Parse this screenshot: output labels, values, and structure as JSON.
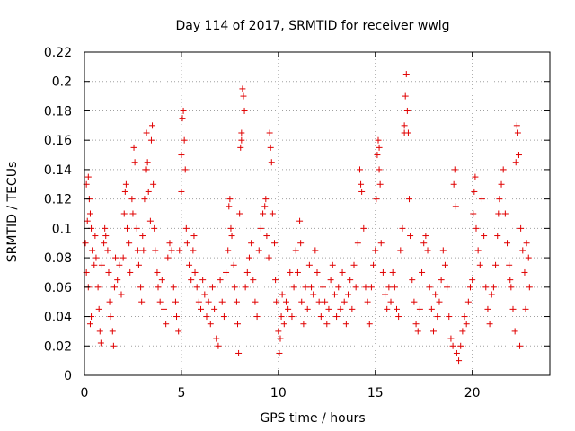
{
  "chart_data": {
    "type": "scatter",
    "title": "Day 114 of 2017, SRMTID for receiver wwlg",
    "xlabel": "GPS time / hours",
    "ylabel": "SRMTID / TECUs",
    "xlim": [
      0,
      24
    ],
    "ylim": [
      0,
      0.22
    ],
    "xticks": [
      0,
      5,
      10,
      15,
      20
    ],
    "xtick_labels": [
      "0",
      "5",
      "10",
      "15",
      "20"
    ],
    "yticks": [
      0,
      0.02,
      0.04,
      0.06,
      0.08,
      0.1,
      0.12,
      0.14,
      0.16,
      0.18,
      0.2,
      0.22
    ],
    "ytick_labels": [
      "0",
      "0.02",
      "0.04",
      "0.06",
      "0.08",
      "0.1",
      "0.12",
      "0.14",
      "0.16",
      "0.18",
      "0.2",
      "0.22"
    ],
    "grid": true,
    "marker": "+",
    "color": "#e00000",
    "series": [
      {
        "name": "SRMTID",
        "points": [
          [
            0.05,
            0.09
          ],
          [
            0.1,
            0.13
          ],
          [
            0.15,
            0.105
          ],
          [
            0.2,
            0.135
          ],
          [
            0.25,
            0.12
          ],
          [
            0.3,
            0.11
          ],
          [
            0.35,
            0.1
          ],
          [
            0.4,
            0.085
          ],
          [
            0.1,
            0.07
          ],
          [
            0.2,
            0.06
          ],
          [
            0.3,
            0.035
          ],
          [
            0.35,
            0.04
          ],
          [
            0.5,
            0.075
          ],
          [
            0.55,
            0.095
          ],
          [
            0.6,
            0.08
          ],
          [
            0.7,
            0.06
          ],
          [
            0.75,
            0.045
          ],
          [
            0.8,
            0.03
          ],
          [
            0.85,
            0.022
          ],
          [
            0.9,
            0.075
          ],
          [
            1.0,
            0.09
          ],
          [
            1.05,
            0.1
          ],
          [
            1.1,
            0.095
          ],
          [
            1.2,
            0.085
          ],
          [
            1.25,
            0.07
          ],
          [
            1.3,
            0.05
          ],
          [
            1.35,
            0.04
          ],
          [
            1.45,
            0.03
          ],
          [
            1.5,
            0.02
          ],
          [
            1.55,
            0.06
          ],
          [
            1.6,
            0.08
          ],
          [
            1.7,
            0.065
          ],
          [
            1.8,
            0.075
          ],
          [
            1.9,
            0.055
          ],
          [
            2.0,
            0.08
          ],
          [
            2.05,
            0.11
          ],
          [
            2.1,
            0.125
          ],
          [
            2.15,
            0.13
          ],
          [
            2.2,
            0.1
          ],
          [
            2.3,
            0.09
          ],
          [
            2.35,
            0.07
          ],
          [
            2.45,
            0.12
          ],
          [
            2.5,
            0.11
          ],
          [
            2.55,
            0.155
          ],
          [
            2.6,
            0.145
          ],
          [
            2.7,
            0.1
          ],
          [
            2.75,
            0.085
          ],
          [
            2.8,
            0.075
          ],
          [
            2.9,
            0.06
          ],
          [
            2.95,
            0.05
          ],
          [
            3.0,
            0.095
          ],
          [
            3.05,
            0.085
          ],
          [
            3.1,
            0.12
          ],
          [
            3.15,
            0.14
          ],
          [
            3.2,
            0.165
          ],
          [
            3.25,
            0.145
          ],
          [
            3.3,
            0.125
          ],
          [
            3.4,
            0.105
          ],
          [
            3.45,
            0.16
          ],
          [
            3.5,
            0.17
          ],
          [
            3.55,
            0.13
          ],
          [
            3.6,
            0.1
          ],
          [
            3.65,
            0.085
          ],
          [
            3.75,
            0.07
          ],
          [
            3.8,
            0.06
          ],
          [
            3.9,
            0.05
          ],
          [
            4.0,
            0.065
          ],
          [
            4.1,
            0.045
          ],
          [
            4.2,
            0.035
          ],
          [
            4.3,
            0.08
          ],
          [
            4.4,
            0.09
          ],
          [
            4.5,
            0.085
          ],
          [
            4.6,
            0.06
          ],
          [
            4.7,
            0.05
          ],
          [
            4.75,
            0.04
          ],
          [
            4.85,
            0.03
          ],
          [
            4.9,
            0.085
          ],
          [
            5.0,
            0.125
          ],
          [
            5.05,
            0.175
          ],
          [
            5.1,
            0.18
          ],
          [
            5.15,
            0.16
          ],
          [
            5.2,
            0.14
          ],
          [
            5.25,
            0.1
          ],
          [
            5.3,
            0.09
          ],
          [
            5.4,
            0.075
          ],
          [
            5.5,
            0.065
          ],
          [
            5.6,
            0.085
          ],
          [
            5.65,
            0.095
          ],
          [
            5.7,
            0.07
          ],
          [
            5.8,
            0.06
          ],
          [
            5.9,
            0.05
          ],
          [
            6.0,
            0.045
          ],
          [
            6.1,
            0.065
          ],
          [
            6.2,
            0.055
          ],
          [
            6.3,
            0.04
          ],
          [
            6.4,
            0.05
          ],
          [
            6.5,
            0.035
          ],
          [
            6.6,
            0.06
          ],
          [
            6.7,
            0.045
          ],
          [
            6.8,
            0.025
          ],
          [
            6.9,
            0.02
          ],
          [
            7.0,
            0.065
          ],
          [
            7.1,
            0.05
          ],
          [
            7.2,
            0.04
          ],
          [
            7.3,
            0.07
          ],
          [
            7.4,
            0.085
          ],
          [
            7.45,
            0.115
          ],
          [
            7.5,
            0.12
          ],
          [
            7.55,
            0.1
          ],
          [
            7.6,
            0.095
          ],
          [
            7.7,
            0.075
          ],
          [
            7.75,
            0.06
          ],
          [
            7.85,
            0.05
          ],
          [
            7.9,
            0.035
          ],
          [
            7.95,
            0.015
          ],
          [
            8.0,
            0.11
          ],
          [
            8.05,
            0.155
          ],
          [
            8.1,
            0.165
          ],
          [
            8.15,
            0.195
          ],
          [
            8.2,
            0.19
          ],
          [
            8.25,
            0.18
          ],
          [
            8.3,
            0.06
          ],
          [
            8.4,
            0.07
          ],
          [
            8.5,
            0.08
          ],
          [
            8.6,
            0.09
          ],
          [
            8.7,
            0.065
          ],
          [
            8.8,
            0.05
          ],
          [
            8.9,
            0.04
          ],
          [
            9.0,
            0.085
          ],
          [
            9.1,
            0.1
          ],
          [
            9.2,
            0.11
          ],
          [
            9.3,
            0.115
          ],
          [
            9.35,
            0.12
          ],
          [
            9.4,
            0.095
          ],
          [
            9.5,
            0.08
          ],
          [
            9.55,
            0.165
          ],
          [
            9.6,
            0.155
          ],
          [
            9.65,
            0.145
          ],
          [
            9.7,
            0.11
          ],
          [
            9.8,
            0.09
          ],
          [
            9.85,
            0.065
          ],
          [
            9.9,
            0.05
          ],
          [
            10.0,
            0.03
          ],
          [
            10.05,
            0.015
          ],
          [
            10.1,
            0.025
          ],
          [
            10.15,
            0.04
          ],
          [
            10.2,
            0.055
          ],
          [
            10.3,
            0.035
          ],
          [
            10.4,
            0.05
          ],
          [
            10.5,
            0.045
          ],
          [
            10.6,
            0.07
          ],
          [
            10.7,
            0.04
          ],
          [
            10.8,
            0.06
          ],
          [
            10.9,
            0.085
          ],
          [
            11.0,
            0.07
          ],
          [
            11.1,
            0.105
          ],
          [
            11.15,
            0.09
          ],
          [
            11.2,
            0.05
          ],
          [
            11.3,
            0.035
          ],
          [
            11.4,
            0.06
          ],
          [
            11.5,
            0.045
          ],
          [
            11.6,
            0.075
          ],
          [
            11.7,
            0.06
          ],
          [
            11.8,
            0.055
          ],
          [
            11.9,
            0.085
          ],
          [
            12.0,
            0.07
          ],
          [
            12.1,
            0.05
          ],
          [
            12.2,
            0.04
          ],
          [
            12.3,
            0.06
          ],
          [
            12.4,
            0.05
          ],
          [
            12.5,
            0.035
          ],
          [
            12.6,
            0.045
          ],
          [
            12.7,
            0.065
          ],
          [
            12.8,
            0.075
          ],
          [
            12.9,
            0.055
          ],
          [
            13.0,
            0.04
          ],
          [
            13.1,
            0.06
          ],
          [
            13.2,
            0.045
          ],
          [
            13.3,
            0.07
          ],
          [
            13.4,
            0.05
          ],
          [
            13.5,
            0.035
          ],
          [
            13.6,
            0.055
          ],
          [
            13.7,
            0.065
          ],
          [
            13.8,
            0.045
          ],
          [
            13.9,
            0.075
          ],
          [
            14.0,
            0.06
          ],
          [
            14.1,
            0.09
          ],
          [
            14.2,
            0.14
          ],
          [
            14.25,
            0.13
          ],
          [
            14.3,
            0.125
          ],
          [
            14.4,
            0.1
          ],
          [
            14.5,
            0.06
          ],
          [
            14.6,
            0.05
          ],
          [
            14.7,
            0.035
          ],
          [
            14.8,
            0.06
          ],
          [
            14.9,
            0.075
          ],
          [
            15.0,
            0.085
          ],
          [
            15.05,
            0.12
          ],
          [
            15.1,
            0.15
          ],
          [
            15.15,
            0.16
          ],
          [
            15.2,
            0.14
          ],
          [
            15.25,
            0.13
          ],
          [
            15.3,
            0.09
          ],
          [
            15.4,
            0.07
          ],
          [
            15.5,
            0.055
          ],
          [
            15.6,
            0.045
          ],
          [
            15.7,
            0.06
          ],
          [
            15.8,
            0.05
          ],
          [
            15.9,
            0.07
          ],
          [
            16.0,
            0.06
          ],
          [
            16.1,
            0.045
          ],
          [
            16.2,
            0.04
          ],
          [
            16.3,
            0.085
          ],
          [
            16.4,
            0.1
          ],
          [
            16.5,
            0.17
          ],
          [
            16.55,
            0.19
          ],
          [
            16.6,
            0.205
          ],
          [
            16.65,
            0.18
          ],
          [
            16.7,
            0.165
          ],
          [
            16.75,
            0.12
          ],
          [
            16.8,
            0.095
          ],
          [
            16.9,
            0.065
          ],
          [
            17.0,
            0.05
          ],
          [
            17.1,
            0.035
          ],
          [
            17.2,
            0.03
          ],
          [
            17.3,
            0.045
          ],
          [
            17.4,
            0.07
          ],
          [
            17.5,
            0.09
          ],
          [
            17.6,
            0.095
          ],
          [
            17.7,
            0.085
          ],
          [
            17.8,
            0.06
          ],
          [
            17.9,
            0.045
          ],
          [
            18.0,
            0.03
          ],
          [
            18.1,
            0.055
          ],
          [
            18.2,
            0.04
          ],
          [
            18.3,
            0.05
          ],
          [
            18.4,
            0.065
          ],
          [
            18.5,
            0.085
          ],
          [
            18.6,
            0.075
          ],
          [
            18.7,
            0.06
          ],
          [
            18.8,
            0.04
          ],
          [
            18.9,
            0.025
          ],
          [
            19.0,
            0.02
          ],
          [
            19.05,
            0.13
          ],
          [
            19.1,
            0.14
          ],
          [
            19.15,
            0.115
          ],
          [
            19.2,
            0.015
          ],
          [
            19.3,
            0.01
          ],
          [
            19.4,
            0.02
          ],
          [
            19.5,
            0.03
          ],
          [
            19.6,
            0.04
          ],
          [
            19.7,
            0.035
          ],
          [
            19.8,
            0.05
          ],
          [
            19.9,
            0.06
          ],
          [
            20.0,
            0.065
          ],
          [
            20.05,
            0.11
          ],
          [
            20.1,
            0.125
          ],
          [
            20.15,
            0.135
          ],
          [
            20.2,
            0.1
          ],
          [
            20.3,
            0.085
          ],
          [
            20.4,
            0.075
          ],
          [
            20.5,
            0.12
          ],
          [
            20.6,
            0.095
          ],
          [
            20.7,
            0.06
          ],
          [
            20.8,
            0.045
          ],
          [
            20.9,
            0.035
          ],
          [
            21.0,
            0.055
          ],
          [
            21.1,
            0.06
          ],
          [
            21.2,
            0.075
          ],
          [
            21.3,
            0.095
          ],
          [
            21.35,
            0.11
          ],
          [
            21.4,
            0.12
          ],
          [
            21.5,
            0.13
          ],
          [
            21.6,
            0.14
          ],
          [
            21.7,
            0.11
          ],
          [
            21.8,
            0.09
          ],
          [
            21.9,
            0.075
          ],
          [
            22.0,
            0.06
          ],
          [
            22.1,
            0.045
          ],
          [
            22.2,
            0.03
          ],
          [
            22.25,
            0.145
          ],
          [
            22.3,
            0.17
          ],
          [
            22.35,
            0.165
          ],
          [
            22.4,
            0.15
          ],
          [
            22.5,
            0.1
          ],
          [
            22.6,
            0.085
          ],
          [
            22.7,
            0.07
          ],
          [
            22.8,
            0.09
          ],
          [
            22.9,
            0.08
          ],
          [
            22.95,
            0.06
          ],
          [
            22.45,
            0.02
          ],
          [
            21.95,
            0.065
          ],
          [
            22.75,
            0.045
          ],
          [
            3.2,
            0.14
          ],
          [
            8.1,
            0.16
          ],
          [
            5.0,
            0.15
          ],
          [
            16.5,
            0.165
          ],
          [
            15.2,
            0.155
          ]
        ]
      }
    ]
  }
}
